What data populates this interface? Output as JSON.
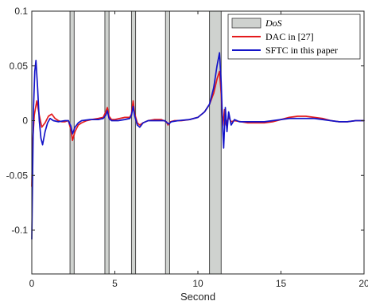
{
  "chart_data": {
    "type": "line",
    "title": "",
    "xlabel": "Second",
    "ylabel": "",
    "xlim": [
      0,
      20
    ],
    "ylim": [
      -0.14,
      0.1
    ],
    "x_ticks": [
      0,
      5,
      10,
      15,
      20
    ],
    "y_ticks": [
      {
        "value": 0.1,
        "label": "0.1"
      },
      {
        "value": 0.05,
        "label": "0.05"
      },
      {
        "value": 0,
        "label": "0"
      },
      {
        "value": -0.05,
        "label": "-0.05"
      },
      {
        "value": -0.1,
        "label": "-0.1"
      }
    ],
    "grid": false,
    "legend_position": "top-right",
    "dos_intervals": [
      [
        2.3,
        2.55
      ],
      [
        4.4,
        4.65
      ],
      [
        6.0,
        6.25
      ],
      [
        8.05,
        8.3
      ],
      [
        10.7,
        11.4
      ]
    ],
    "legend": [
      {
        "label": "DoS",
        "kind": "patch",
        "color": "#cfd2cf",
        "italic": true
      },
      {
        "label": "DAC in [27]",
        "kind": "line",
        "color": "#e41a1c"
      },
      {
        "label": "SFTC in this paper",
        "kind": "line",
        "color": "#1414c8"
      }
    ],
    "series": [
      {
        "name": "DAC in [27]",
        "color": "#e41a1c",
        "points": [
          [
            0,
            -0.06
          ],
          [
            0.05,
            -0.02
          ],
          [
            0.15,
            0.005
          ],
          [
            0.3,
            0.018
          ],
          [
            0.45,
            0.005
          ],
          [
            0.6,
            -0.006
          ],
          [
            0.8,
            -0.002
          ],
          [
            1.0,
            0.004
          ],
          [
            1.2,
            0.006
          ],
          [
            1.4,
            0.002
          ],
          [
            1.6,
            0.0
          ],
          [
            1.8,
            -0.001
          ],
          [
            2.0,
            -0.001
          ],
          [
            2.2,
            0.0
          ],
          [
            2.35,
            -0.008
          ],
          [
            2.45,
            -0.018
          ],
          [
            2.6,
            -0.01
          ],
          [
            2.8,
            -0.004
          ],
          [
            3.0,
            -0.002
          ],
          [
            3.3,
            0.0
          ],
          [
            3.6,
            0.001
          ],
          [
            4.0,
            0.002
          ],
          [
            4.3,
            0.003
          ],
          [
            4.45,
            0.008
          ],
          [
            4.55,
            0.012
          ],
          [
            4.65,
            0.004
          ],
          [
            4.8,
            0.001
          ],
          [
            5.0,
            0.001
          ],
          [
            5.3,
            0.002
          ],
          [
            5.6,
            0.003
          ],
          [
            5.9,
            0.003
          ],
          [
            6.0,
            0.006
          ],
          [
            6.1,
            0.018
          ],
          [
            6.2,
            0.006
          ],
          [
            6.35,
            -0.002
          ],
          [
            6.5,
            -0.004
          ],
          [
            6.7,
            -0.002
          ],
          [
            7.0,
            0.0
          ],
          [
            7.4,
            0.001
          ],
          [
            7.8,
            0.001
          ],
          [
            8.1,
            -0.001
          ],
          [
            8.2,
            -0.004
          ],
          [
            8.35,
            -0.001
          ],
          [
            8.6,
            0.0
          ],
          [
            9.0,
            0.0
          ],
          [
            9.5,
            0.001
          ],
          [
            10.0,
            0.003
          ],
          [
            10.4,
            0.008
          ],
          [
            10.7,
            0.015
          ],
          [
            10.95,
            0.025
          ],
          [
            11.15,
            0.038
          ],
          [
            11.3,
            0.045
          ],
          [
            11.4,
            0.025
          ],
          [
            11.5,
            -0.005
          ],
          [
            11.6,
            0.01
          ],
          [
            11.7,
            -0.004
          ],
          [
            11.85,
            0.003
          ],
          [
            12.0,
            -0.001
          ],
          [
            12.2,
            0.0
          ],
          [
            12.6,
            -0.001
          ],
          [
            13.0,
            -0.002
          ],
          [
            13.5,
            -0.002
          ],
          [
            14.0,
            -0.002
          ],
          [
            14.5,
            -0.001
          ],
          [
            15.0,
            0.001
          ],
          [
            15.5,
            0.003
          ],
          [
            16.0,
            0.004
          ],
          [
            16.5,
            0.004
          ],
          [
            17.0,
            0.003
          ],
          [
            17.5,
            0.002
          ],
          [
            18.0,
            0.0
          ],
          [
            18.5,
            -0.001
          ],
          [
            19.0,
            -0.001
          ],
          [
            19.5,
            0.0
          ],
          [
            20.0,
            0.0
          ]
        ]
      },
      {
        "name": "SFTC in this paper",
        "color": "#1414c8",
        "points": [
          [
            0,
            -0.108
          ],
          [
            0.05,
            -0.05
          ],
          [
            0.1,
            0.01
          ],
          [
            0.18,
            0.045
          ],
          [
            0.25,
            0.055
          ],
          [
            0.35,
            0.03
          ],
          [
            0.45,
            0.0
          ],
          [
            0.55,
            -0.016
          ],
          [
            0.65,
            -0.022
          ],
          [
            0.8,
            -0.01
          ],
          [
            0.95,
            -0.002
          ],
          [
            1.1,
            0.002
          ],
          [
            1.3,
            0.0
          ],
          [
            1.6,
            -0.001
          ],
          [
            2.0,
            0.0
          ],
          [
            2.2,
            0.0
          ],
          [
            2.35,
            -0.005
          ],
          [
            2.45,
            -0.012
          ],
          [
            2.6,
            -0.006
          ],
          [
            2.8,
            -0.002
          ],
          [
            3.0,
            0.0
          ],
          [
            3.5,
            0.001
          ],
          [
            4.0,
            0.001
          ],
          [
            4.3,
            0.002
          ],
          [
            4.45,
            0.005
          ],
          [
            4.55,
            0.009
          ],
          [
            4.65,
            0.002
          ],
          [
            4.8,
            0.0
          ],
          [
            5.2,
            0.0
          ],
          [
            5.6,
            0.001
          ],
          [
            5.9,
            0.002
          ],
          [
            6.0,
            0.005
          ],
          [
            6.1,
            0.013
          ],
          [
            6.2,
            0.004
          ],
          [
            6.35,
            -0.004
          ],
          [
            6.5,
            -0.006
          ],
          [
            6.7,
            -0.002
          ],
          [
            7.0,
            0.0
          ],
          [
            7.5,
            0.0
          ],
          [
            8.0,
            0.0
          ],
          [
            8.15,
            -0.002
          ],
          [
            8.25,
            -0.003
          ],
          [
            8.4,
            -0.001
          ],
          [
            8.8,
            0.0
          ],
          [
            9.5,
            0.001
          ],
          [
            10.0,
            0.003
          ],
          [
            10.4,
            0.008
          ],
          [
            10.7,
            0.015
          ],
          [
            10.95,
            0.03
          ],
          [
            11.15,
            0.05
          ],
          [
            11.3,
            0.062
          ],
          [
            11.4,
            0.035
          ],
          [
            11.5,
            -0.01
          ],
          [
            11.55,
            -0.025
          ],
          [
            11.65,
            0.012
          ],
          [
            11.75,
            -0.01
          ],
          [
            11.85,
            0.008
          ],
          [
            12.0,
            -0.004
          ],
          [
            12.2,
            0.001
          ],
          [
            12.5,
            -0.001
          ],
          [
            13.0,
            -0.001
          ],
          [
            13.5,
            -0.001
          ],
          [
            14.0,
            -0.001
          ],
          [
            14.5,
            0.0
          ],
          [
            15.0,
            0.001
          ],
          [
            15.5,
            0.002
          ],
          [
            16.0,
            0.002
          ],
          [
            16.5,
            0.002
          ],
          [
            17.0,
            0.002
          ],
          [
            17.5,
            0.001
          ],
          [
            18.0,
            0.0
          ],
          [
            18.5,
            -0.001
          ],
          [
            19.0,
            -0.001
          ],
          [
            19.5,
            0.0
          ],
          [
            20.0,
            0.0
          ]
        ]
      }
    ]
  }
}
